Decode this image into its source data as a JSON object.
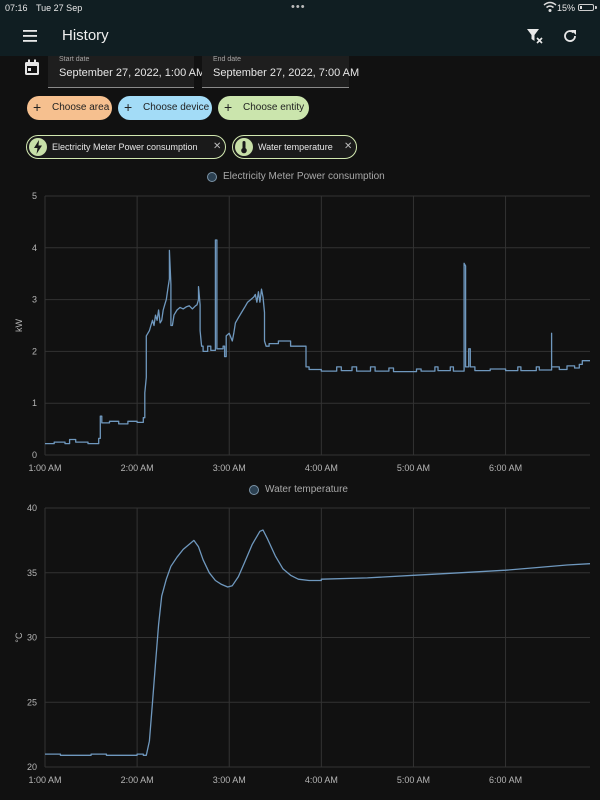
{
  "status_bar": {
    "time": "07:16",
    "date": "Tue 27 Sep",
    "battery": "15%",
    "battery_level": 0.15
  },
  "header": {
    "title": "History",
    "menu_icon": "menu-icon",
    "clear_filter_icon": "filter-remove-icon",
    "refresh_icon": "refresh-icon"
  },
  "date_range": {
    "start": {
      "label": "Start date",
      "value": "September 27, 2022, 1:00 AM"
    },
    "end": {
      "label": "End date",
      "value": "September 27, 2022, 7:00 AM"
    }
  },
  "pickers": [
    {
      "label": "Choose area",
      "color": "#f6c08f"
    },
    {
      "label": "Choose device",
      "color": "#a3dcf7"
    },
    {
      "label": "Choose entity",
      "color": "#cbe5ad"
    }
  ],
  "selected_entities": [
    {
      "label": "Electricity Meter Power consumption",
      "icon": "lightning-bolt-icon"
    },
    {
      "label": "Water temperature",
      "icon": "thermometer-icon"
    }
  ],
  "colors": {
    "line": "#6f98be",
    "grid": "#333333",
    "appbar": "#101e22",
    "background": "#111111"
  },
  "chart_data": [
    {
      "type": "line",
      "legend": "Electricity Meter Power consumption",
      "ylabel": "kW",
      "xlabel": "",
      "ylim": [
        0,
        5
      ],
      "xlim": [
        "01:00",
        "06:55"
      ],
      "y_ticks": [
        "0",
        "1",
        "2",
        "3",
        "4",
        "5"
      ],
      "x_ticks": [
        "1:00 AM",
        "2:00 AM",
        "3:00 AM",
        "4:00 AM",
        "5:00 AM",
        "6:00 AM"
      ],
      "grid": true,
      "series": [
        {
          "name": "Electricity Meter Power consumption",
          "points": [
            [
              "01:00",
              0.22
            ],
            [
              "01:06",
              0.22
            ],
            [
              "01:06",
              0.25
            ],
            [
              "01:13",
              0.25
            ],
            [
              "01:13",
              0.22
            ],
            [
              "01:16",
              0.22
            ],
            [
              "01:16",
              0.3
            ],
            [
              "01:20",
              0.3
            ],
            [
              "01:20",
              0.25
            ],
            [
              "01:28",
              0.25
            ],
            [
              "01:28",
              0.22
            ],
            [
              "01:35",
              0.22
            ],
            [
              "01:35",
              0.32
            ],
            [
              "01:36",
              0.32
            ],
            [
              "01:36",
              0.75
            ],
            [
              "01:37",
              0.75
            ],
            [
              "01:37",
              0.62
            ],
            [
              "01:42",
              0.62
            ],
            [
              "01:42",
              0.65
            ],
            [
              "01:48",
              0.65
            ],
            [
              "01:48",
              0.6
            ],
            [
              "01:54",
              0.6
            ],
            [
              "01:54",
              0.65
            ],
            [
              "02:00",
              0.65
            ],
            [
              "02:00",
              0.63
            ],
            [
              "02:04",
              0.63
            ],
            [
              "02:04",
              0.72
            ],
            [
              "02:05",
              0.72
            ],
            [
              "02:05",
              1.2
            ],
            [
              "02:06",
              1.5
            ],
            [
              "02:06",
              2.3
            ],
            [
              "02:08",
              2.4
            ],
            [
              "02:09",
              2.5
            ],
            [
              "02:10",
              2.6
            ],
            [
              "02:11",
              2.5
            ],
            [
              "02:12",
              2.7
            ],
            [
              "02:13",
              2.6
            ],
            [
              "02:14",
              2.8
            ],
            [
              "02:15",
              2.55
            ],
            [
              "02:16",
              2.6
            ],
            [
              "02:17",
              2.8
            ],
            [
              "02:18",
              2.9
            ],
            [
              "02:19",
              3.0
            ],
            [
              "02:20",
              3.2
            ],
            [
              "02:21",
              3.4
            ],
            [
              "02:21",
              3.95
            ],
            [
              "02:22",
              3.3
            ],
            [
              "02:22",
              2.5
            ],
            [
              "02:23",
              2.5
            ],
            [
              "02:24",
              2.7
            ],
            [
              "02:26",
              2.8
            ],
            [
              "02:28",
              2.85
            ],
            [
              "02:30",
              2.82
            ],
            [
              "02:32",
              2.86
            ],
            [
              "02:34",
              2.88
            ],
            [
              "02:36",
              2.82
            ],
            [
              "02:38",
              2.88
            ],
            [
              "02:39",
              2.9
            ],
            [
              "02:40",
              3.0
            ],
            [
              "02:40",
              3.25
            ],
            [
              "02:41",
              2.9
            ],
            [
              "02:41",
              2.4
            ],
            [
              "02:42",
              2.1
            ],
            [
              "02:43",
              2.1
            ],
            [
              "02:43",
              2.0
            ],
            [
              "02:46",
              2.0
            ],
            [
              "02:46",
              2.1
            ],
            [
              "02:48",
              2.1
            ],
            [
              "02:48",
              2.02
            ],
            [
              "02:51",
              2.02
            ],
            [
              "02:51",
              4.15
            ],
            [
              "02:52",
              4.15
            ],
            [
              "02:52",
              2.05
            ],
            [
              "02:56",
              2.05
            ],
            [
              "02:56",
              2.1
            ],
            [
              "02:57",
              2.1
            ],
            [
              "02:57",
              1.9
            ],
            [
              "02:58",
              1.9
            ],
            [
              "02:58",
              2.3
            ],
            [
              "03:00",
              2.35
            ],
            [
              "03:02",
              2.2
            ],
            [
              "03:03",
              2.35
            ],
            [
              "03:04",
              2.55
            ],
            [
              "03:06",
              2.65
            ],
            [
              "03:08",
              2.75
            ],
            [
              "03:10",
              2.85
            ],
            [
              "03:12",
              2.95
            ],
            [
              "03:14",
              3.0
            ],
            [
              "03:16",
              3.05
            ],
            [
              "03:17",
              3.1
            ],
            [
              "03:18",
              2.95
            ],
            [
              "03:19",
              3.15
            ],
            [
              "03:20",
              2.95
            ],
            [
              "03:21",
              3.2
            ],
            [
              "03:22",
              3.05
            ],
            [
              "03:23",
              2.75
            ],
            [
              "03:23",
              2.2
            ],
            [
              "03:24",
              2.1
            ],
            [
              "03:26",
              2.1
            ],
            [
              "03:26",
              2.15
            ],
            [
              "03:32",
              2.15
            ],
            [
              "03:32",
              2.2
            ],
            [
              "03:40",
              2.2
            ],
            [
              "03:40",
              2.1
            ],
            [
              "03:50",
              2.1
            ],
            [
              "03:50",
              1.7
            ],
            [
              "03:52",
              1.7
            ],
            [
              "03:52",
              1.65
            ],
            [
              "04:00",
              1.65
            ],
            [
              "04:00",
              1.62
            ],
            [
              "04:10",
              1.62
            ],
            [
              "04:10",
              1.7
            ],
            [
              "04:13",
              1.7
            ],
            [
              "04:13",
              1.63
            ],
            [
              "04:20",
              1.63
            ],
            [
              "04:20",
              1.7
            ],
            [
              "04:23",
              1.7
            ],
            [
              "04:23",
              1.62
            ],
            [
              "04:32",
              1.62
            ],
            [
              "04:32",
              1.7
            ],
            [
              "04:35",
              1.7
            ],
            [
              "04:35",
              1.62
            ],
            [
              "04:44",
              1.62
            ],
            [
              "04:44",
              1.68
            ],
            [
              "04:47",
              1.68
            ],
            [
              "04:47",
              1.61
            ],
            [
              "05:02",
              1.61
            ],
            [
              "05:02",
              1.66
            ],
            [
              "05:05",
              1.66
            ],
            [
              "05:05",
              1.62
            ],
            [
              "05:14",
              1.62
            ],
            [
              "05:14",
              1.7
            ],
            [
              "05:16",
              1.7
            ],
            [
              "05:16",
              1.63
            ],
            [
              "05:24",
              1.63
            ],
            [
              "05:24",
              1.7
            ],
            [
              "05:26",
              1.7
            ],
            [
              "05:26",
              1.62
            ],
            [
              "05:33",
              1.62
            ],
            [
              "05:33",
              1.7
            ],
            [
              "05:33",
              3.7
            ],
            [
              "05:34",
              3.65
            ],
            [
              "05:34",
              1.7
            ],
            [
              "05:36",
              1.7
            ],
            [
              "05:36",
              2.05
            ],
            [
              "05:37",
              2.05
            ],
            [
              "05:37",
              1.7
            ],
            [
              "05:40",
              1.7
            ],
            [
              "05:40",
              1.63
            ],
            [
              "05:50",
              1.63
            ],
            [
              "05:50",
              1.66
            ],
            [
              "06:00",
              1.66
            ],
            [
              "06:00",
              1.63
            ],
            [
              "06:08",
              1.63
            ],
            [
              "06:08",
              1.7
            ],
            [
              "06:10",
              1.7
            ],
            [
              "06:10",
              1.63
            ],
            [
              "06:20",
              1.63
            ],
            [
              "06:20",
              1.7
            ],
            [
              "06:22",
              1.7
            ],
            [
              "06:22",
              1.64
            ],
            [
              "06:30",
              1.64
            ],
            [
              "06:30",
              2.35
            ],
            [
              "06:30",
              1.7
            ],
            [
              "06:35",
              1.7
            ],
            [
              "06:35",
              1.65
            ],
            [
              "06:40",
              1.65
            ],
            [
              "06:40",
              1.72
            ],
            [
              "06:45",
              1.72
            ],
            [
              "06:45",
              1.68
            ],
            [
              "06:48",
              1.68
            ],
            [
              "06:48",
              1.75
            ],
            [
              "06:50",
              1.75
            ],
            [
              "06:50",
              1.82
            ],
            [
              "06:55",
              1.82
            ]
          ]
        }
      ]
    },
    {
      "type": "line",
      "legend": "Water temperature",
      "ylabel": "°C",
      "xlabel": "",
      "ylim": [
        20,
        40
      ],
      "xlim": [
        "01:00",
        "06:55"
      ],
      "y_ticks": [
        "20",
        "25",
        "30",
        "35",
        "40"
      ],
      "x_ticks": [
        "1:00 AM",
        "2:00 AM",
        "3:00 AM",
        "4:00 AM",
        "5:00 AM",
        "6:00 AM"
      ],
      "grid": true,
      "series": [
        {
          "name": "Water temperature",
          "points": [
            [
              "01:00",
              21.0
            ],
            [
              "01:10",
              21.0
            ],
            [
              "01:10",
              20.9
            ],
            [
              "01:30",
              20.9
            ],
            [
              "01:30",
              21.0
            ],
            [
              "01:40",
              21.0
            ],
            [
              "01:40",
              20.9
            ],
            [
              "02:00",
              20.9
            ],
            [
              "02:00",
              21.0
            ],
            [
              "02:04",
              21.0
            ],
            [
              "02:04",
              20.9
            ],
            [
              "02:06",
              20.9
            ],
            [
              "02:08",
              22.0
            ],
            [
              "02:10",
              25.0
            ],
            [
              "02:12",
              28.0
            ],
            [
              "02:14",
              31.0
            ],
            [
              "02:16",
              33.2
            ],
            [
              "02:19",
              34.5
            ],
            [
              "02:22",
              35.5
            ],
            [
              "02:26",
              36.2
            ],
            [
              "02:30",
              36.8
            ],
            [
              "02:34",
              37.2
            ],
            [
              "02:37",
              37.5
            ],
            [
              "02:40",
              37.0
            ],
            [
              "02:43",
              36.0
            ],
            [
              "02:47",
              35.0
            ],
            [
              "02:51",
              34.4
            ],
            [
              "02:55",
              34.1
            ],
            [
              "02:59",
              33.9
            ],
            [
              "03:02",
              34.0
            ],
            [
              "03:06",
              34.7
            ],
            [
              "03:10",
              35.8
            ],
            [
              "03:15",
              37.2
            ],
            [
              "03:20",
              38.2
            ],
            [
              "03:22",
              38.3
            ],
            [
              "03:25",
              37.6
            ],
            [
              "03:30",
              36.3
            ],
            [
              "03:35",
              35.3
            ],
            [
              "03:40",
              34.8
            ],
            [
              "03:45",
              34.5
            ],
            [
              "03:52",
              34.4
            ],
            [
              "04:00",
              34.4
            ],
            [
              "04:00",
              34.5
            ],
            [
              "04:30",
              34.6
            ],
            [
              "05:00",
              34.8
            ],
            [
              "05:30",
              35.0
            ],
            [
              "06:00",
              35.2
            ],
            [
              "06:20",
              35.4
            ],
            [
              "06:40",
              35.6
            ],
            [
              "06:55",
              35.7
            ]
          ]
        }
      ]
    }
  ]
}
